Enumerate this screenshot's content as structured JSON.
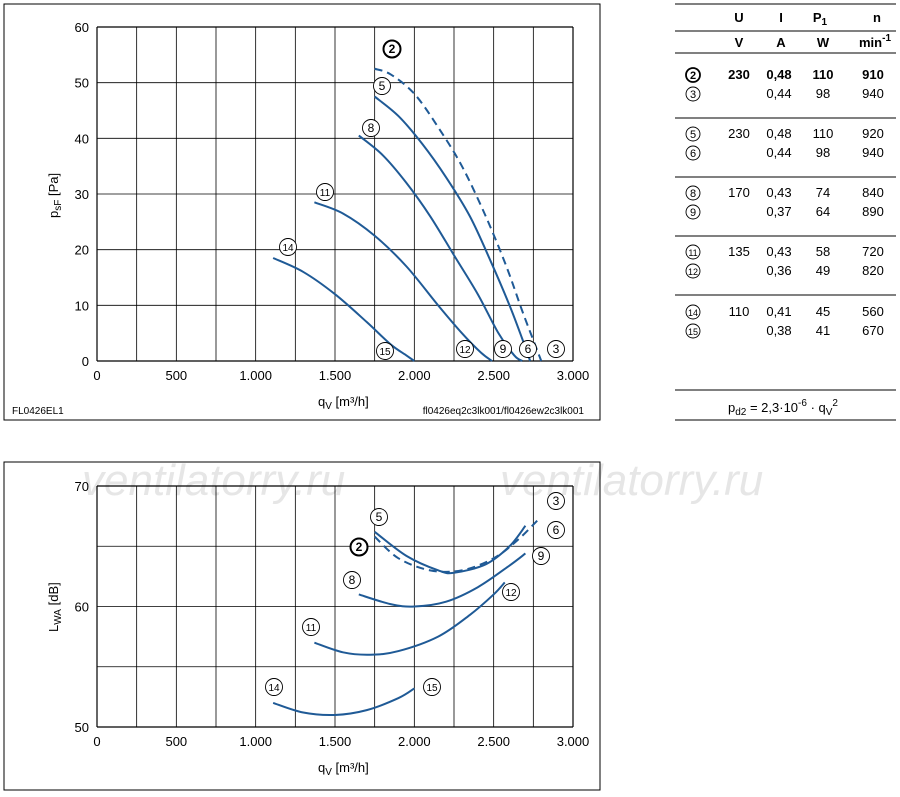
{
  "charts": {
    "top": {
      "footer_left": "FL0426EL1",
      "footer_right": "fl0426eq2c3lk001/fl0426ew2c3lk001",
      "x_ticks": [
        "0",
        "500",
        "1.000",
        "1.500",
        "2.000",
        "2.500",
        "3.000"
      ],
      "y_ticks": [
        "0",
        "10",
        "20",
        "30",
        "40",
        "50",
        "60"
      ]
    },
    "bottom": {
      "x_ticks": [
        "0",
        "500",
        "1.000",
        "1.500",
        "2.000",
        "2.500",
        "3.000"
      ],
      "y_ticks": [
        "50",
        "55",
        "60",
        "65",
        "70"
      ],
      "y_tick_visible": [
        "50",
        "",
        "60",
        "",
        "70"
      ],
      "watermark": "ventilatorry.ru"
    }
  },
  "table": {
    "headers": [
      "U",
      "I",
      "P",
      "n"
    ],
    "units": [
      "V",
      "A",
      "W",
      "min"
    ],
    "rows": [
      {
        "curve": "2",
        "U": "230",
        "I": "0,48",
        "P": "110",
        "n": "910",
        "bold": true
      },
      {
        "curve": "3",
        "U": "",
        "I": "0,44",
        "P": "98",
        "n": "940",
        "bold": false
      },
      {
        "curve": "5",
        "U": "230",
        "I": "0,48",
        "P": "110",
        "n": "920",
        "bold": false
      },
      {
        "curve": "6",
        "U": "",
        "I": "0,44",
        "P": "98",
        "n": "940",
        "bold": false
      },
      {
        "curve": "8",
        "U": "170",
        "I": "0,43",
        "P": "74",
        "n": "840",
        "bold": false
      },
      {
        "curve": "9",
        "U": "",
        "I": "0,37",
        "P": "64",
        "n": "890",
        "bold": false
      },
      {
        "curve": "11",
        "U": "135",
        "I": "0,43",
        "P": "58",
        "n": "720",
        "bold": false
      },
      {
        "curve": "12",
        "U": "",
        "I": "0,36",
        "P": "49",
        "n": "820",
        "bold": false
      },
      {
        "curve": "14",
        "U": "110",
        "I": "0,41",
        "P": "45",
        "n": "560",
        "bold": false
      },
      {
        "curve": "15",
        "U": "",
        "I": "0,38",
        "P": "41",
        "n": "670",
        "bold": false
      }
    ],
    "formula": {
      "lhs": "p",
      "lhs_sub": "d2",
      "mid": " = 2,3·10",
      "exp": "-6",
      "tail": " · q",
      "tail_sub": "V",
      "tail_exp": "2"
    }
  },
  "chart_data": [
    {
      "type": "line",
      "xlabel": "qV [m³/h]",
      "ylabel": "psF [Pa]",
      "xlim": [
        0,
        3000
      ],
      "ylim": [
        0,
        60
      ],
      "grid": true,
      "series": [
        {
          "name": "2",
          "style": "dashed",
          "x": [
            1750,
            1850,
            2000,
            2150,
            2300,
            2450,
            2580,
            2680,
            2760,
            2800
          ],
          "y": [
            52.5,
            51.5,
            48,
            42,
            35,
            26,
            17,
            9,
            3,
            0
          ]
        },
        {
          "name": "5",
          "style": "solid",
          "x": [
            1750,
            1900,
            2050,
            2200,
            2350,
            2480,
            2600,
            2680,
            2730
          ],
          "y": [
            47.5,
            44,
            39,
            33,
            26,
            18,
            10,
            4,
            0
          ]
        },
        {
          "name": "8",
          "style": "solid",
          "x": [
            1650,
            1800,
            1950,
            2100,
            2250,
            2400,
            2530,
            2630,
            2680
          ],
          "y": [
            40.5,
            37,
            32,
            26,
            19,
            12,
            5,
            1,
            0
          ]
        },
        {
          "name": "11",
          "style": "solid",
          "x": [
            1370,
            1550,
            1750,
            1950,
            2150,
            2300,
            2420,
            2490
          ],
          "y": [
            28.5,
            26.5,
            22.5,
            17,
            10,
            5,
            1.5,
            0
          ]
        },
        {
          "name": "14",
          "style": "solid",
          "x": [
            1110,
            1300,
            1500,
            1700,
            1850,
            1950,
            2000
          ],
          "y": [
            18.5,
            16,
            12,
            7,
            3,
            1,
            0
          ]
        }
      ],
      "labels": [
        "2",
        "3",
        "5",
        "6",
        "8",
        "9",
        "11",
        "12",
        "14",
        "15"
      ]
    },
    {
      "type": "line",
      "xlabel": "qV [m³/h]",
      "ylabel": "LWA [dB]",
      "xlim": [
        0,
        3000
      ],
      "ylim": [
        50,
        70
      ],
      "grid": true,
      "series": [
        {
          "name": "2",
          "style": "dashed",
          "x": [
            1750,
            1900,
            2100,
            2300,
            2500,
            2650,
            2780
          ],
          "y": [
            65.8,
            64,
            63,
            63,
            64,
            65.5,
            67.2
          ]
        },
        {
          "name": "5",
          "style": "solid",
          "x": [
            1750,
            1950,
            2150,
            2250,
            2450,
            2600,
            2700
          ],
          "y": [
            66.2,
            64.2,
            63,
            62.8,
            63.5,
            65,
            66.7
          ]
        },
        {
          "name": "8",
          "style": "solid",
          "x": [
            1650,
            1850,
            2000,
            2200,
            2400,
            2600,
            2700
          ],
          "y": [
            61,
            60.2,
            60,
            60.4,
            61.6,
            63.4,
            64.4
          ]
        },
        {
          "name": "11",
          "style": "solid",
          "x": [
            1370,
            1550,
            1720,
            1900,
            2150,
            2350,
            2500,
            2570
          ],
          "y": [
            57,
            56.2,
            56,
            56.3,
            57.5,
            59.3,
            61,
            62
          ]
        },
        {
          "name": "14",
          "style": "solid",
          "x": [
            1110,
            1300,
            1500,
            1700,
            1900,
            2000
          ],
          "y": [
            52,
            51.2,
            51,
            51.4,
            52.4,
            53.2
          ]
        }
      ],
      "labels": [
        "2",
        "3",
        "5",
        "6",
        "8",
        "9",
        "11",
        "12",
        "14",
        "15"
      ]
    }
  ],
  "colors": {
    "curve": "#1f5a96",
    "grid": "#000000"
  }
}
